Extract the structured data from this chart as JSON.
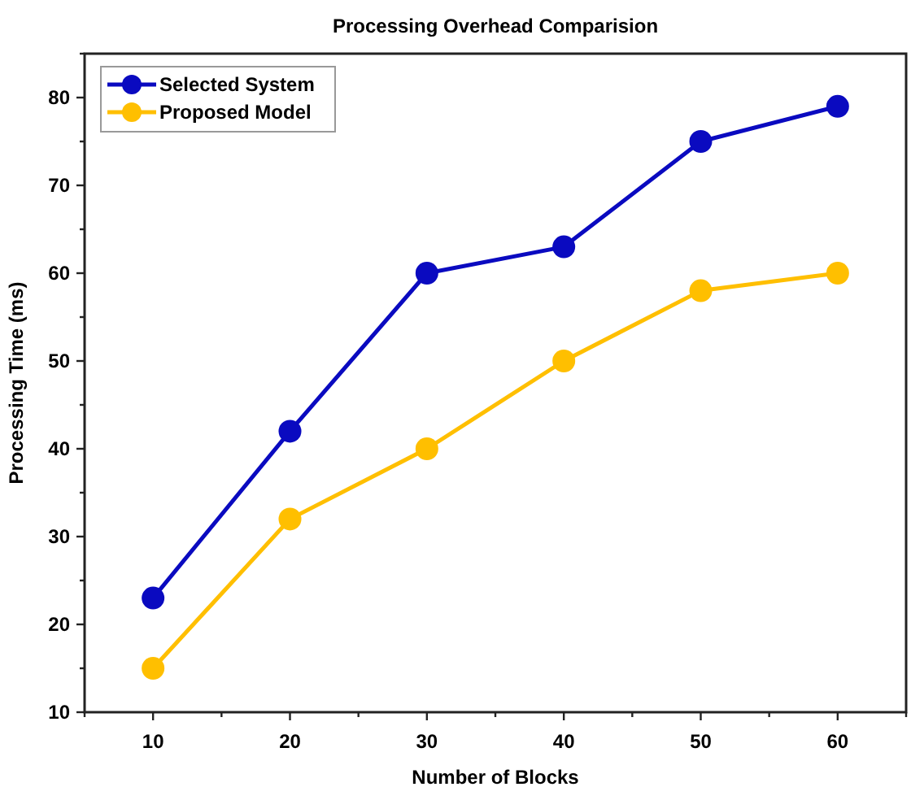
{
  "chart_data": {
    "type": "line",
    "title": "Processing Overhead Comparision",
    "xlabel": "Number of Blocks",
    "ylabel": "Processing Time (ms)",
    "x": [
      10,
      20,
      30,
      40,
      50,
      60
    ],
    "series": [
      {
        "name": "Selected System",
        "color": "#0a0ac0",
        "values": [
          23,
          42,
          60,
          63,
          75,
          79
        ]
      },
      {
        "name": "Proposed Model",
        "color": "#ffbf00",
        "values": [
          15,
          32,
          40,
          50,
          58,
          60
        ]
      }
    ],
    "xlim": [
      5,
      65
    ],
    "xticks": [
      {
        "value": 5,
        "label": null
      },
      10,
      {
        "value": 15,
        "label": null
      },
      20,
      {
        "value": 25,
        "label": null
      },
      30,
      {
        "value": 35,
        "label": null
      },
      40,
      {
        "value": 45,
        "label": null
      },
      50,
      {
        "value": 55,
        "label": null
      },
      60,
      {
        "value": 65,
        "label": null
      }
    ],
    "ylim": [
      10,
      85
    ],
    "yticks": [
      10,
      {
        "value": 15,
        "label": null
      },
      20,
      {
        "value": 25,
        "label": null
      },
      30,
      {
        "value": 35,
        "label": null
      },
      40,
      {
        "value": 45,
        "label": null
      },
      50,
      {
        "value": 55,
        "label": null
      },
      60,
      {
        "value": 65,
        "label": null
      },
      70,
      {
        "value": 75,
        "label": null
      },
      80,
      {
        "value": 85,
        "label": null
      }
    ],
    "grid": false,
    "legend": "top left",
    "marker": "circle",
    "line_style": "solid"
  }
}
